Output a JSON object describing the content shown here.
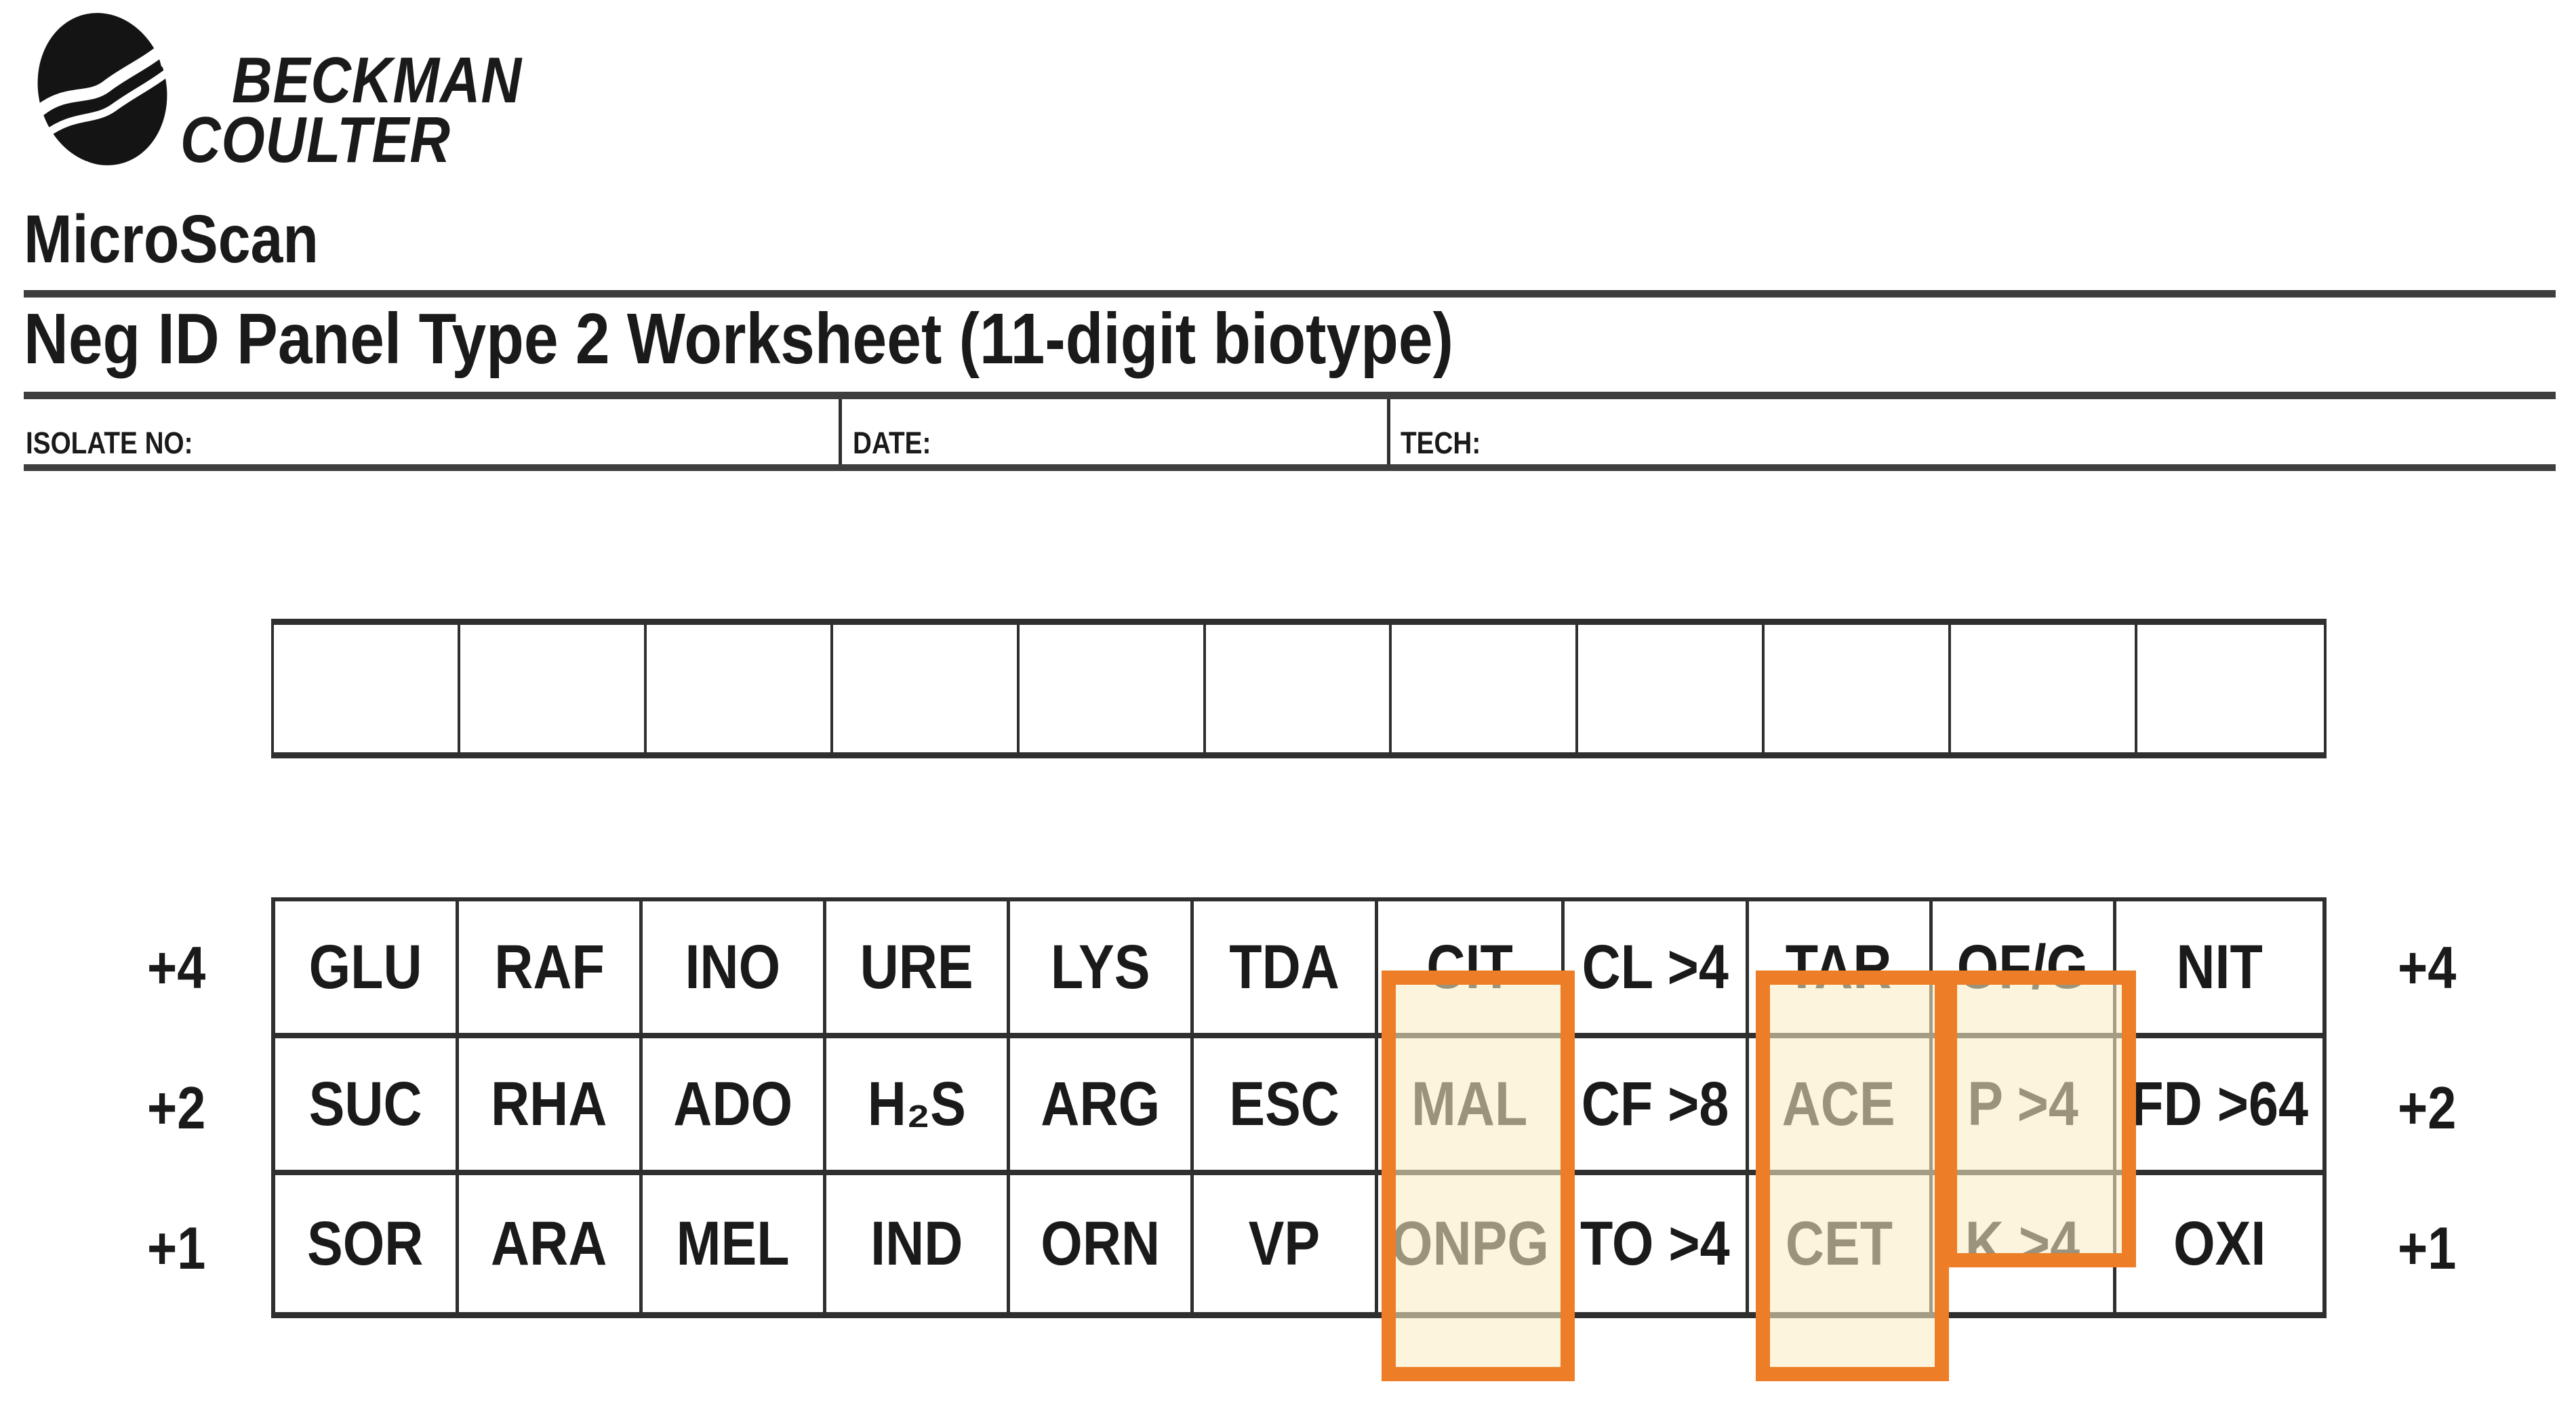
{
  "brand": {
    "line1": "BECKMAN",
    "line2": "COULTER"
  },
  "product": "MicroScan",
  "title": "Neg ID Panel Type 2 Worksheet (11-digit biotype)",
  "form": {
    "isolate_label": "ISOLATE NO:",
    "date_label": "DATE:",
    "tech_label": "TECH:",
    "isolate_value": "",
    "date_value": "",
    "tech_value": ""
  },
  "biotype_boxes": {
    "count": 11,
    "values": [
      "",
      "",
      "",
      "",
      "",
      "",
      "",
      "",
      "",
      "",
      ""
    ]
  },
  "panel": {
    "rows": [
      {
        "value": "+4",
        "cells": [
          "GLU",
          "RAF",
          "INO",
          "URE",
          "LYS",
          "TDA",
          "CIT",
          "CL >4",
          "TAR",
          "OF/G",
          "NIT"
        ]
      },
      {
        "value": "+2",
        "cells": [
          "SUC",
          "RHA",
          "ADO",
          "H₂S",
          "ARG",
          "ESC",
          "MAL",
          "CF >8",
          "ACE",
          "P >4",
          "FD >64"
        ]
      },
      {
        "value": "+1",
        "cells": [
          "SOR",
          "ARA",
          "MEL",
          "IND",
          "ORN",
          "VP",
          "ONPG",
          "TO >4",
          "CET",
          "K >4",
          "OXI"
        ]
      }
    ],
    "highlights": [
      {
        "name": "cit-mal-onpg-column",
        "column_index": 6,
        "covers": [
          "CIT",
          "MAL",
          "ONPG"
        ]
      },
      {
        "name": "tar-ace-cet-column",
        "column_index": 8,
        "covers": [
          "TAR",
          "ACE",
          "CET"
        ]
      },
      {
        "name": "ofg-p4-column",
        "column_index": 9,
        "covers": [
          "OF/G",
          "P >4"
        ],
        "partial": "K >4"
      }
    ]
  },
  "colors": {
    "highlight_border": "#ED7D26",
    "highlight_fill_rgba": "rgba(249,236,195,0.58)",
    "grid_line": "#2f2f2f",
    "rule_line": "#3e3e3e",
    "text": "#1a1a1a"
  }
}
